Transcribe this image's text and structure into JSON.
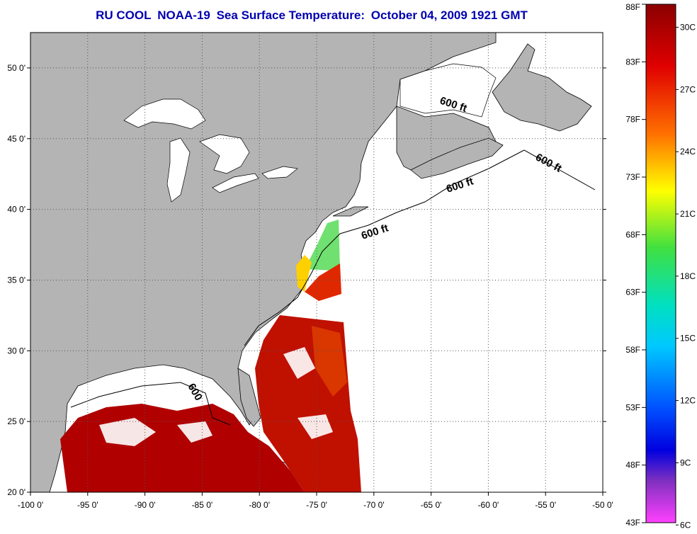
{
  "title": {
    "org": "RU COOL",
    "satellite": "NOAA-19",
    "product": "Sea Surface Temperature:",
    "datetime": "October 04, 2009 1921 GMT"
  },
  "map": {
    "lon_range": [
      -100,
      -50
    ],
    "lat_range": [
      20,
      52.5
    ],
    "lon_ticks": [
      {
        "value": -100,
        "label": "-100 0'"
      },
      {
        "value": -95,
        "label": "-95 0'"
      },
      {
        "value": -90,
        "label": "-90 0'"
      },
      {
        "value": -85,
        "label": "-85 0'"
      },
      {
        "value": -80,
        "label": "-80 0'"
      },
      {
        "value": -75,
        "label": "-75 0'"
      },
      {
        "value": -70,
        "label": "-70 0'"
      },
      {
        "value": -65,
        "label": "-65 0'"
      },
      {
        "value": -60,
        "label": "-60 0'"
      },
      {
        "value": -55,
        "label": "-55 0'"
      },
      {
        "value": -50,
        "label": "-50 0'"
      }
    ],
    "lat_ticks": [
      {
        "value": 20,
        "label": "20 0'"
      },
      {
        "value": 25,
        "label": "25 0'"
      },
      {
        "value": 30,
        "label": "30 0'"
      },
      {
        "value": 35,
        "label": "35 0'"
      },
      {
        "value": 40,
        "label": "40 0'"
      },
      {
        "value": 45,
        "label": "45 0'"
      },
      {
        "value": 50,
        "label": "50 0'"
      }
    ],
    "isobath_labels": [
      "600 ft",
      "600 ft",
      "600 ft",
      "600 ft",
      "600"
    ],
    "colors": {
      "land": "#b4b4b4",
      "water": "#ffffff",
      "sst_hot": "#b00000",
      "sst_warm": "#e03000",
      "sst_mid": "#ffd000",
      "sst_cool": "#60e060"
    }
  },
  "colorbar": {
    "fahrenheit": [
      {
        "value": 88,
        "label": "88F"
      },
      {
        "value": 83,
        "label": "83F"
      },
      {
        "value": 78,
        "label": "78F"
      },
      {
        "value": 73,
        "label": "73F"
      },
      {
        "value": 68,
        "label": "68F"
      },
      {
        "value": 63,
        "label": "63F"
      },
      {
        "value": 58,
        "label": "58F"
      },
      {
        "value": 53,
        "label": "53F"
      },
      {
        "value": 48,
        "label": "48F"
      },
      {
        "value": 43,
        "label": "43F"
      }
    ],
    "celsius": [
      {
        "value": 30,
        "label": "30C"
      },
      {
        "value": 27,
        "label": "27C"
      },
      {
        "value": 24,
        "label": "24C"
      },
      {
        "value": 21,
        "label": "21C"
      },
      {
        "value": 18,
        "label": "18C"
      },
      {
        "value": 15,
        "label": "15C"
      },
      {
        "value": 12,
        "label": "12C"
      },
      {
        "value": 9,
        "label": "9C"
      },
      {
        "value": 6,
        "label": "6C"
      }
    ]
  }
}
